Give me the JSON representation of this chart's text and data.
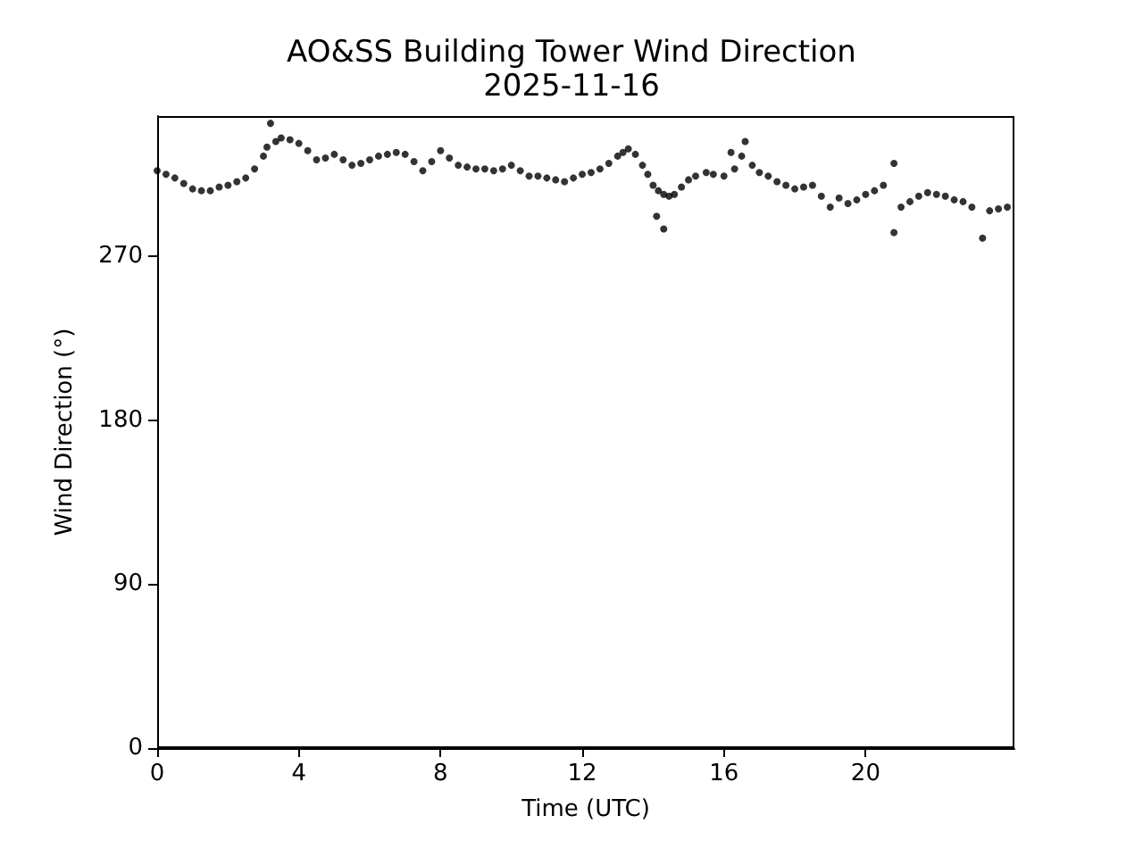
{
  "chart_data": {
    "type": "scatter",
    "title": "AO&SS Building Tower Wind Direction",
    "subtitle": "2025-11-16",
    "xlabel": "Time (UTC)",
    "ylabel": "Wind Direction (°)",
    "x": [
      0,
      0.25,
      0.5,
      0.75,
      1,
      1.25,
      1.5,
      1.75,
      2,
      2.25,
      2.5,
      2.75,
      3,
      3.1,
      3.2,
      3.35,
      3.5,
      3.75,
      4,
      4.25,
      4.5,
      4.75,
      5,
      5.25,
      5.5,
      5.75,
      6,
      6.25,
      6.5,
      6.75,
      7,
      7.25,
      7.5,
      7.75,
      8,
      8.25,
      8.5,
      8.75,
      9,
      9.25,
      9.5,
      9.75,
      10,
      10.25,
      10.5,
      10.75,
      11,
      11.25,
      11.5,
      11.75,
      12,
      12.25,
      12.5,
      12.75,
      13,
      13.15,
      13.3,
      13.5,
      13.7,
      13.85,
      14,
      14.1,
      14.15,
      14.3,
      14.3,
      14.45,
      14.6,
      14.8,
      15,
      15.2,
      15.5,
      15.7,
      16,
      16.2,
      16.3,
      16.5,
      16.6,
      16.8,
      17,
      17.25,
      17.5,
      17.75,
      18,
      18.25,
      18.5,
      18.75,
      19,
      19.25,
      19.5,
      19.75,
      20,
      20.25,
      20.5,
      20.8,
      20.8,
      21,
      21.25,
      21.5,
      21.75,
      22,
      22.25,
      22.5,
      22.75,
      23,
      23.3,
      23.5,
      23.75,
      24
    ],
    "values": [
      317,
      315,
      313,
      310,
      307,
      306,
      306,
      308,
      309,
      311,
      313,
      318,
      325,
      330,
      343,
      333,
      335,
      334,
      332,
      328,
      323,
      324,
      326,
      323,
      320,
      321,
      323,
      325,
      326,
      327,
      326,
      322,
      317,
      322,
      328,
      324,
      320,
      319,
      318,
      318,
      317,
      318,
      320,
      317,
      314,
      314,
      313,
      312,
      311,
      313,
      315,
      316,
      318,
      321,
      325,
      327,
      329,
      326,
      320,
      315,
      309,
      292,
      306,
      304,
      285,
      303,
      304,
      308,
      312,
      314,
      316,
      315,
      314,
      327,
      318,
      325,
      333,
      320,
      316,
      314,
      311,
      309,
      307,
      308,
      309,
      303,
      297,
      302,
      299,
      301,
      304,
      306,
      309,
      321,
      283,
      297,
      300,
      303,
      305,
      304,
      303,
      301,
      300,
      297,
      280,
      295,
      296,
      297
    ],
    "color": "#000000",
    "marker": "circle",
    "xlim": [
      0,
      24.2
    ],
    "ylim": [
      0,
      347
    ],
    "xticks": [
      0,
      4,
      8,
      12,
      16,
      20
    ],
    "yticks": [
      0,
      90,
      180,
      270
    ],
    "grid": false
  }
}
